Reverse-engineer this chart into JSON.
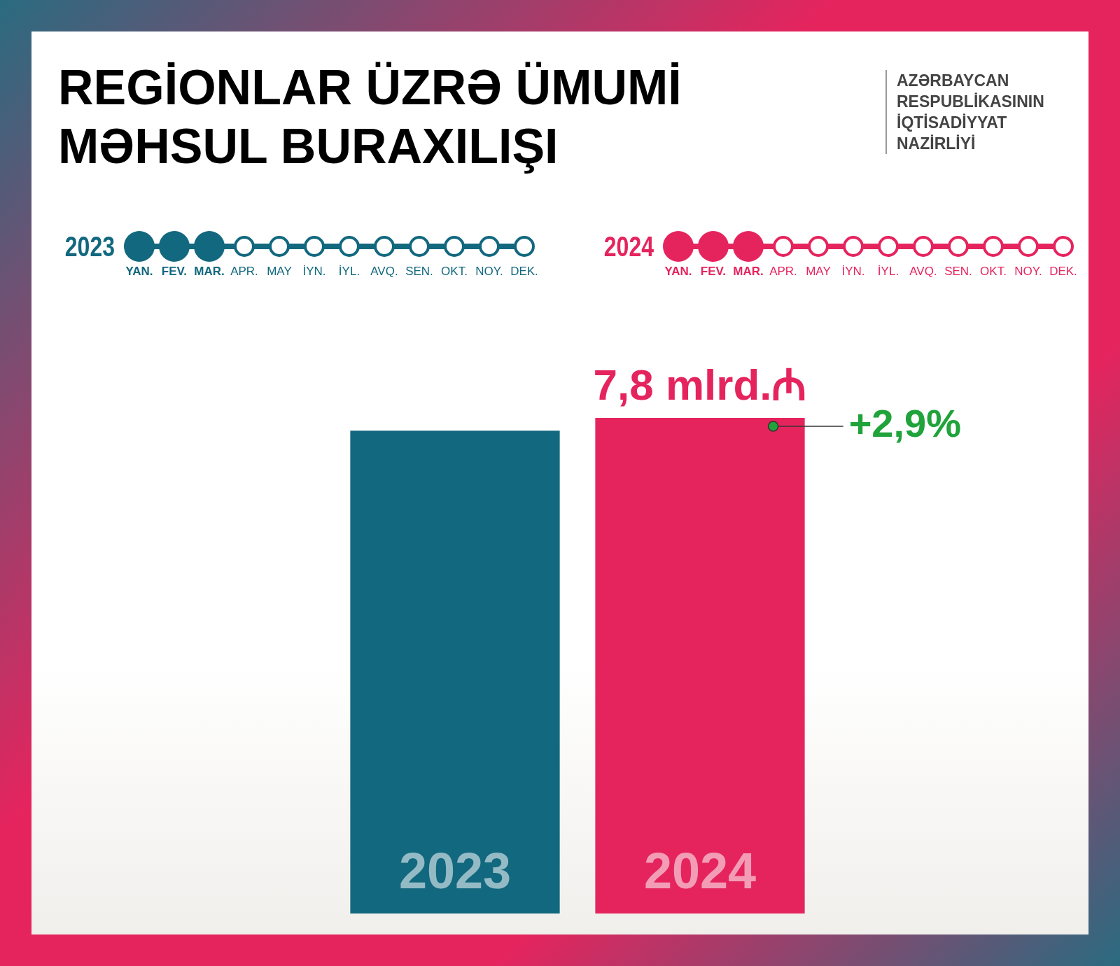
{
  "chart_data": {
    "type": "bar",
    "title": "REGİONLAR ÜZRƏ ÜMUMİ MƏHSUL BURAXILIŞI",
    "categories": [
      "2023",
      "2024"
    ],
    "values": [
      7.6,
      7.8
    ],
    "colors": [
      "#12687e",
      "#e5245e"
    ],
    "tick_labels": false,
    "value_labels": [
      null,
      "7,8 mlrd.₼"
    ],
    "annotations": [
      "AZƏRBAYCAN RESPUBLİKASININ İQTİSADİYYAT NAZİRLİYİ",
      "+2,9%",
      "2023",
      "YAN.",
      "FEV.",
      "MAR.",
      "APR.",
      "MAY",
      "İYN.",
      "İYL.",
      "AVQ.",
      "SEN.",
      "OKT.",
      "NOY.",
      "DEK.",
      "2024",
      "YAN.",
      "FEV.",
      "MAR.",
      "APR.",
      "MAY",
      "İYN.",
      "İYL.",
      "AVQ.",
      "SEN.",
      "OKT.",
      "NOY.",
      "DEK."
    ]
  }
}
